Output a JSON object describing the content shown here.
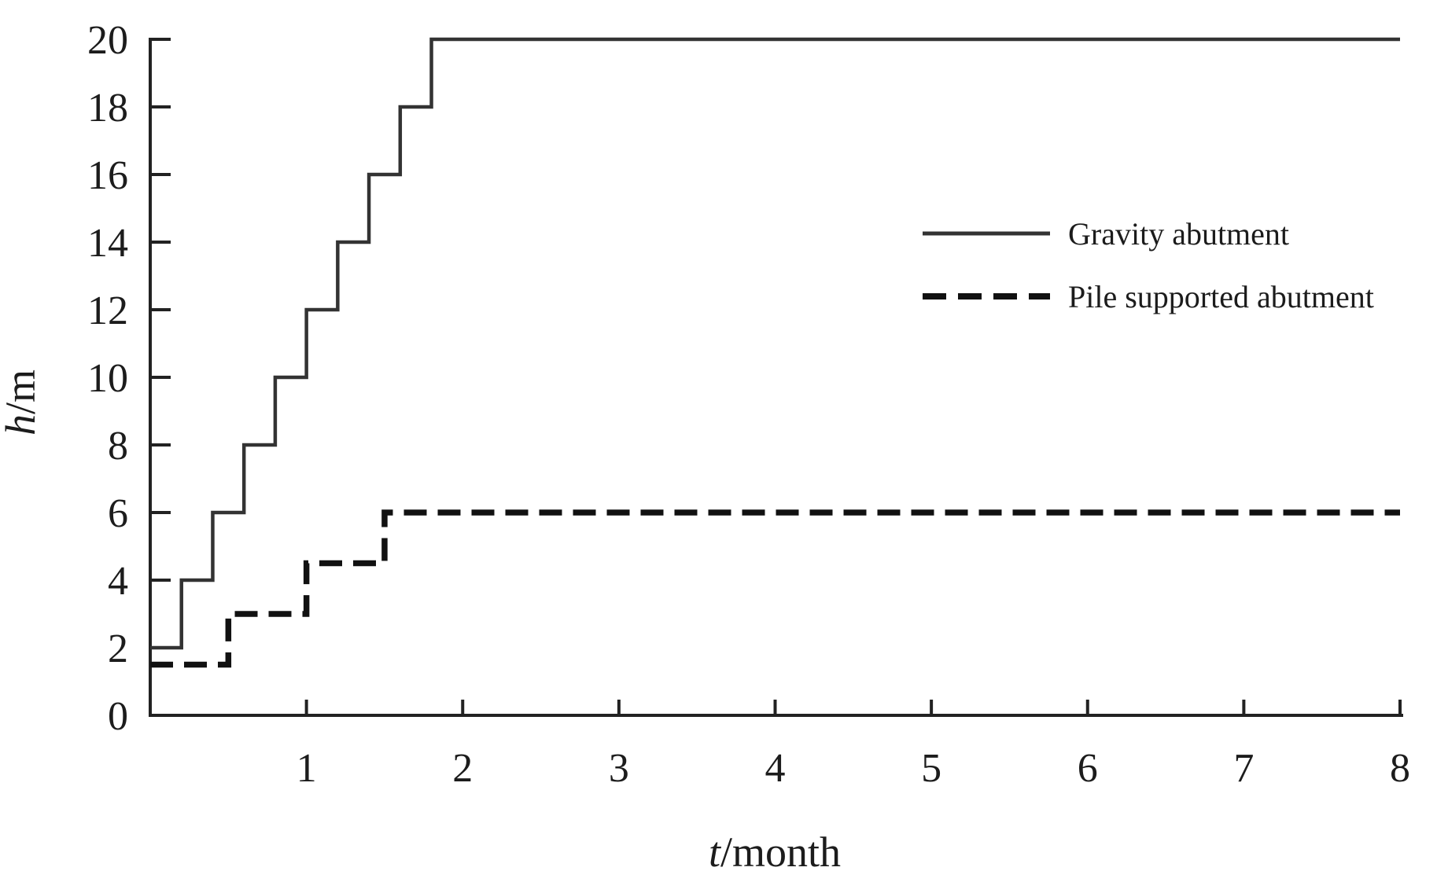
{
  "chart_data": {
    "type": "line",
    "subtype": "step-after",
    "title": "",
    "xlabel_var": "t",
    "xlabel_unit": "/month",
    "ylabel_var": "h",
    "ylabel_unit": "/m",
    "x_axis": {
      "min": 0,
      "max": 8,
      "tick_values": [
        1,
        2,
        3,
        4,
        5,
        6,
        7,
        8
      ]
    },
    "y_axis": {
      "min": 0,
      "max": 20,
      "tick_values": [
        0,
        2,
        4,
        6,
        8,
        10,
        12,
        14,
        16,
        18,
        20
      ]
    },
    "grid": false,
    "background_color": "#ffffff",
    "axis_color": "#222222",
    "text_color": "#1c1c1c",
    "legend": {
      "position": "right-center"
    },
    "series": [
      {
        "name": "Gravity abutment",
        "line_style": "solid",
        "color": "#333333",
        "step_points": [
          [
            0,
            2
          ],
          [
            0.2,
            4
          ],
          [
            0.4,
            6
          ],
          [
            0.6,
            8
          ],
          [
            0.8,
            10
          ],
          [
            1.0,
            12
          ],
          [
            1.2,
            14
          ],
          [
            1.4,
            16
          ],
          [
            1.6,
            18
          ],
          [
            1.8,
            20
          ],
          [
            8,
            20
          ]
        ]
      },
      {
        "name": "Pile supported abutment",
        "line_style": "dashed",
        "color": "#111111",
        "step_points": [
          [
            0,
            1.5
          ],
          [
            0.5,
            3
          ],
          [
            1.0,
            4.5
          ],
          [
            1.5,
            6
          ],
          [
            8,
            6
          ]
        ]
      }
    ]
  }
}
